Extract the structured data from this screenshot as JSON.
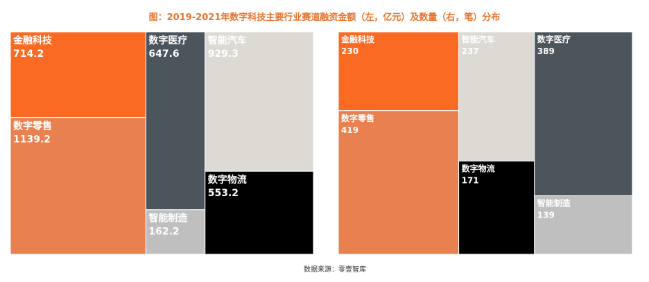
{
  "title": "图：2019-2021年数字科技主要行业赛道融资金额（左，亿元）及数量（右，笔）分布",
  "source": "数据来源：零壹智库",
  "colors": {
    "title": "#e8732c",
    "orange": "#fb6a22",
    "light_orange": "#e88050",
    "dark_gray": "#4b555b",
    "beige": "#dddad3",
    "black": "#000000",
    "light_gray": "#bfbfbf",
    "white_text": "#ffffff"
  },
  "chart_data": [
    {
      "type": "treemap",
      "title": "融资金额（亿元）",
      "unit": "亿元",
      "items": [
        {
          "name": "金融科技",
          "value": 714.2,
          "color": "#fb6a22",
          "text": "#ffffff"
        },
        {
          "name": "数字零售",
          "value": 1139.2,
          "color": "#e88050",
          "text": "#ffffff"
        },
        {
          "name": "数字医疗",
          "value": 647.6,
          "color": "#4b555b",
          "text": "#ffffff"
        },
        {
          "name": "智能制造",
          "value": 162.2,
          "color": "#bfbfbf",
          "text": "#ffffff"
        },
        {
          "name": "智能汽车",
          "value": 929.3,
          "color": "#dddad3",
          "text": "#ffffff"
        },
        {
          "name": "数字物流",
          "value": 553.2,
          "color": "#000000",
          "text": "#ffffff"
        }
      ]
    },
    {
      "type": "treemap",
      "title": "融资数量（笔）",
      "unit": "笔",
      "items": [
        {
          "name": "金融科技",
          "value": 230,
          "color": "#fb6a22",
          "text": "#ffffff"
        },
        {
          "name": "数字零售",
          "value": 419,
          "color": "#e88050",
          "text": "#ffffff"
        },
        {
          "name": "智能汽车",
          "value": 237,
          "color": "#dddad3",
          "text": "#ffffff"
        },
        {
          "name": "数字物流",
          "value": 171,
          "color": "#000000",
          "text": "#ffffff"
        },
        {
          "name": "数字医疗",
          "value": 389,
          "color": "#4b555b",
          "text": "#ffffff"
        },
        {
          "name": "智能制造",
          "value": 139,
          "color": "#bfbfbf",
          "text": "#ffffff"
        }
      ]
    }
  ]
}
